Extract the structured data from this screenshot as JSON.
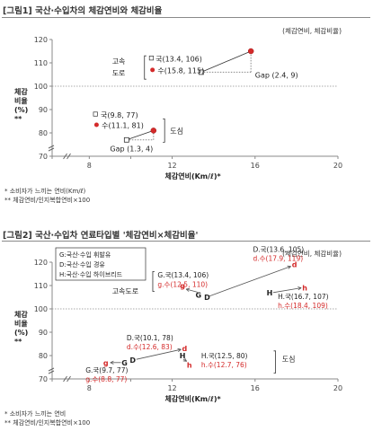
{
  "figure1": {
    "title": "[그림1] 국산·수입차의  체감연비와 체감비율",
    "unit_note": "(체감연비, 체감비율)",
    "footnotes": [
      "* 소비자가 느끼는 연비(Km/ℓ)",
      "** 체감연비/인지복합연비×100"
    ]
  },
  "figure2": {
    "title": "[그림2]  국산·수입차  연료타입별  '체감연비×체감비율'",
    "unit_note": "(체감연비, 체감비율)",
    "legend": [
      "G:국산·수입 휘발유",
      "D:국산·수입 경유",
      "H:국산·수입 하이브리드"
    ],
    "footnotes": [
      "* 소비자가 느끼는 연비",
      "** 체감연비/인지복합연비×100"
    ]
  },
  "chart_data": [
    {
      "type": "scatter",
      "title": "체감연비와 체감비율",
      "xlabel": "체감연비(Km/ℓ)*",
      "ylabel": "체감\n비율\n(%)\n**",
      "xlim": [
        5,
        20
      ],
      "ylim": [
        70,
        120
      ],
      "x_ticks": [
        "",
        "8",
        "",
        "12",
        "16",
        "20"
      ],
      "x_tick_values": [
        5,
        8,
        10,
        12,
        16,
        20
      ],
      "y_ticks": [
        "70",
        "80",
        "90",
        "100",
        "110",
        "120"
      ],
      "y_tick_values": [
        70,
        80,
        90,
        100,
        110,
        120
      ],
      "reference_line_y": 100,
      "points": [
        {
          "label": "국(13.4, 106)",
          "x": 13.4,
          "y": 106,
          "marker": "square",
          "color": "#ffffff"
        },
        {
          "label": "수(15.8, 115)",
          "x": 15.8,
          "y": 115,
          "marker": "circle",
          "color": "#d42a2a"
        },
        {
          "label": "국(9.8, 77)",
          "x": 9.8,
          "y": 77,
          "marker": "square",
          "color": "#ffffff"
        },
        {
          "label": "수(11.1, 81)",
          "x": 11.1,
          "y": 81,
          "marker": "circle",
          "color": "#d42a2a"
        }
      ],
      "groups": [
        {
          "name": "고속\n도로",
          "gap_label": "Gap (2.4, 9)",
          "domestic": [
            13.4,
            106
          ],
          "imported": [
            15.8,
            115
          ]
        },
        {
          "name": "도심",
          "gap_label": "Gap (1.3, 4)",
          "domestic": [
            9.8,
            77
          ],
          "imported": [
            11.1,
            81
          ]
        }
      ]
    },
    {
      "type": "scatter",
      "title": "연료타입별 체감연비×체감비율",
      "xlabel": "체감연비(Km/ℓ)*",
      "ylabel": "체감\n비율\n(%)\n**",
      "xlim": [
        5,
        20
      ],
      "ylim": [
        70,
        120
      ],
      "x_ticks": [
        "",
        "8",
        "",
        "12",
        "16",
        "20"
      ],
      "x_tick_values": [
        5,
        8,
        10,
        12,
        16,
        20
      ],
      "y_ticks": [
        "70",
        "80",
        "90",
        "100",
        "110",
        "120"
      ],
      "y_tick_values": [
        70,
        80,
        90,
        100,
        110,
        120
      ],
      "reference_line_y": 100,
      "groups": [
        {
          "name": "고속도로",
          "points": [
            {
              "fuel": "G",
              "label_dom": "G.국(13.4,  106)",
              "label_imp": "g.수(12.5,  110)",
              "domestic": [
                13.4,
                106
              ],
              "imported": [
                12.5,
                110
              ]
            },
            {
              "fuel": "D",
              "label_dom": "D.국(13.6, 105)",
              "label_imp": "d.수(17.9, 119)",
              "domestic": [
                13.6,
                105
              ],
              "imported": [
                17.9,
                119
              ]
            },
            {
              "fuel": "H",
              "label_dom": "H.국(16.7,  107)",
              "label_imp": "h.수(18.4,  109)",
              "domestic": [
                16.7,
                107
              ],
              "imported": [
                18.4,
                109
              ]
            }
          ]
        },
        {
          "name": "도심",
          "points": [
            {
              "fuel": "D",
              "label_dom": "D.국(10.1,  78)",
              "label_imp": "d.수(12.6,  83)",
              "domestic": [
                10.1,
                78
              ],
              "imported": [
                12.6,
                83
              ]
            },
            {
              "fuel": "G",
              "label_dom": "G.국(9.7,  77)",
              "label_imp": "g.수(8.8,  77)",
              "domestic": [
                9.7,
                77
              ],
              "imported": [
                8.8,
                77
              ]
            },
            {
              "fuel": "H",
              "label_dom": "H.국(12.5,  80)",
              "label_imp": "h.수(12.7,  76)",
              "domestic": [
                12.5,
                80
              ],
              "imported": [
                12.7,
                76
              ]
            }
          ]
        }
      ]
    }
  ]
}
